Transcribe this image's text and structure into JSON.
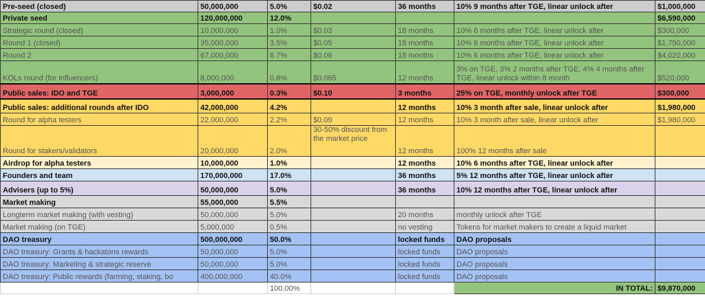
{
  "colors": {
    "gray": "#cccccc",
    "green": "#93c47d",
    "red": "#e06666",
    "yellow": "#ffd966",
    "light_yellow": "#fff2cc",
    "light_blue": "#cfe2f3",
    "lavender": "#d9d2e9",
    "light_gray": "#d9d9d9",
    "blue": "#a4c2f4"
  },
  "rows": [
    {
      "name": "Pre-seed (closed)",
      "tokens": "50,000,000",
      "pct": "5.0%",
      "price": "$0.02",
      "vesting": "36 months",
      "unlock": "10% 9 months after TGE, linear unlock after",
      "amount": "$1,000,000",
      "bold": true,
      "color": "gray",
      "h": 17
    },
    {
      "name": "Private seed",
      "tokens": "120,000,000",
      "pct": "12.0%",
      "price": "",
      "vesting": "",
      "unlock": "",
      "amount": "$6,590,000",
      "bold": true,
      "color": "green",
      "h": 17
    },
    {
      "name": "Strategic round (closed)",
      "tokens": "10,000,000",
      "pct": "1.0%",
      "price": "$0.03",
      "vesting": "18 months",
      "unlock": "10% 6 months after TGE, linear unlock after",
      "amount": "$300,000",
      "bold": false,
      "color": "green",
      "h": 18
    },
    {
      "name": "Round 1 (closed)",
      "tokens": "35,000,000",
      "pct": "3.5%",
      "price": "$0.05",
      "vesting": "18 months",
      "unlock": "10% 6 months after TGE, linear unlock after",
      "amount": "$1,750,000",
      "bold": false,
      "color": "green",
      "h": 18
    },
    {
      "name": "Round 2",
      "tokens": "67,000,000",
      "pct": "6.7%",
      "price": "$0.06",
      "vesting": "18 months",
      "unlock": "10% 6 months after TGE, linear unlock after",
      "amount": "$4,020,000",
      "bold": false,
      "color": "green",
      "h": 18
    },
    {
      "name": "KOLs round (for influencers)",
      "tokens": "8,000,000",
      "pct": "0.8%",
      "price": "$0.065",
      "vesting": "12 months",
      "unlock": "3% on TGE, 3% 2 months after TGE, 4% 4 months after TGE, linear unlock within 8 month",
      "amount": "$520,000",
      "bold": false,
      "color": "green",
      "h": 33,
      "wrap_unlock": true
    },
    {
      "name": "Public sales: IDO and TGE",
      "tokens": "3,000,000",
      "pct": "0.3%",
      "price": "$0.10",
      "vesting": "3 months",
      "unlock": "25% on TGE, monthly unlock after TGE",
      "amount": "$300,000",
      "bold": true,
      "color": "red",
      "h": 22,
      "thick": true
    },
    {
      "name": "Public sales: additional rounds after IDO",
      "tokens": "42,000,000",
      "pct": "4.2%",
      "price": "",
      "vesting": "12 months",
      "unlock": "10% 3 month after sale, linear unlock after",
      "amount": "$1,980,000",
      "bold": true,
      "color": "yellow",
      "h": 21
    },
    {
      "name": "Round for alpha testers",
      "tokens": "22,000,000",
      "pct": "2.2%",
      "price": "$0.09",
      "vesting": "12 months",
      "unlock": "10% 3 month after sale, linear unlock after",
      "amount": "$1,980,000",
      "bold": false,
      "color": "yellow",
      "h": 18
    },
    {
      "name": "Round for stakers/validators",
      "tokens": "20,000,000",
      "pct": "2.0%",
      "price": "30-50% discount from the market price",
      "vesting": "12 months",
      "unlock": "100% 12 months after sale",
      "amount": "",
      "bold": false,
      "color": "yellow",
      "h": 45,
      "wrap_price": true,
      "price_top": true
    },
    {
      "name": "Airdrop for alpha testers",
      "tokens": "10,000,000",
      "pct": "1.0%",
      "price": "",
      "vesting": "12 months",
      "unlock": "10% 6 months after TGE, linear unlock after",
      "amount": "",
      "bold": true,
      "color": "light_yellow",
      "h": 18
    },
    {
      "name": "Founders and team",
      "tokens": "170,000,000",
      "pct": "17.0%",
      "price": "",
      "vesting": "36 months",
      "unlock": "5% 12 months after TGE, linear unlock after",
      "amount": "",
      "bold": true,
      "color": "light_blue",
      "h": 18
    },
    {
      "name": "Advisers (up to 5%)",
      "tokens": "50,000,000",
      "pct": "5.0%",
      "price": "",
      "vesting": "36 months",
      "unlock": "10% 12 months after TGE, linear unlock after",
      "amount": "",
      "bold": true,
      "color": "lavender",
      "h": 21
    },
    {
      "name": "Market making",
      "tokens": "55,000,000",
      "pct": "5.5%",
      "price": "",
      "vesting": "",
      "unlock": "",
      "amount": "",
      "bold": true,
      "color": "light_gray",
      "h": 18
    },
    {
      "name": "Longterm market making (with vesting)",
      "tokens": "50,000,000",
      "pct": "5.0%",
      "price": "",
      "vesting": "20 months",
      "unlock": "monthly unlock after TGE",
      "amount": "",
      "bold": false,
      "color": "light_gray",
      "h": 18
    },
    {
      "name": "Market making (on TGE)",
      "tokens": "5,000,000",
      "pct": "0.5%",
      "price": "",
      "vesting": "no vesting",
      "unlock": "Tokens for market makers to create a liquid market",
      "amount": "",
      "bold": false,
      "color": "light_gray",
      "h": 18
    },
    {
      "name": "DAO treasury",
      "tokens": "500,000,000",
      "pct": "50.0%",
      "price": "",
      "vesting": "locked funds",
      "unlock": "DAO proposals",
      "amount": "",
      "bold": true,
      "color": "blue",
      "h": 18
    },
    {
      "name": "DAO treasury: Grants & hackatons rewards",
      "tokens": "50,000,000",
      "pct": "5.0%",
      "price": "",
      "vesting": "locked funds",
      "unlock": "DAO proposals",
      "amount": "",
      "bold": false,
      "color": "blue",
      "h": 18
    },
    {
      "name": "DAO treasury: Marketing & strategic reserve",
      "tokens": "50,000,000",
      "pct": "5.0%",
      "price": "",
      "vesting": "locked funds",
      "unlock": "DAO proposals",
      "amount": "",
      "bold": false,
      "color": "blue",
      "h": 18
    },
    {
      "name": "DAO treasury: Public rewards (farming, staking, bo",
      "tokens": "400,000,000",
      "pct": "40.0%",
      "price": "",
      "vesting": "locked funds",
      "unlock": "DAO proposals",
      "amount": "",
      "bold": false,
      "color": "blue",
      "h": 18
    }
  ],
  "total": {
    "pct": "100.00%",
    "label": "IN TOTAL:",
    "amount": "$9,870,000"
  }
}
